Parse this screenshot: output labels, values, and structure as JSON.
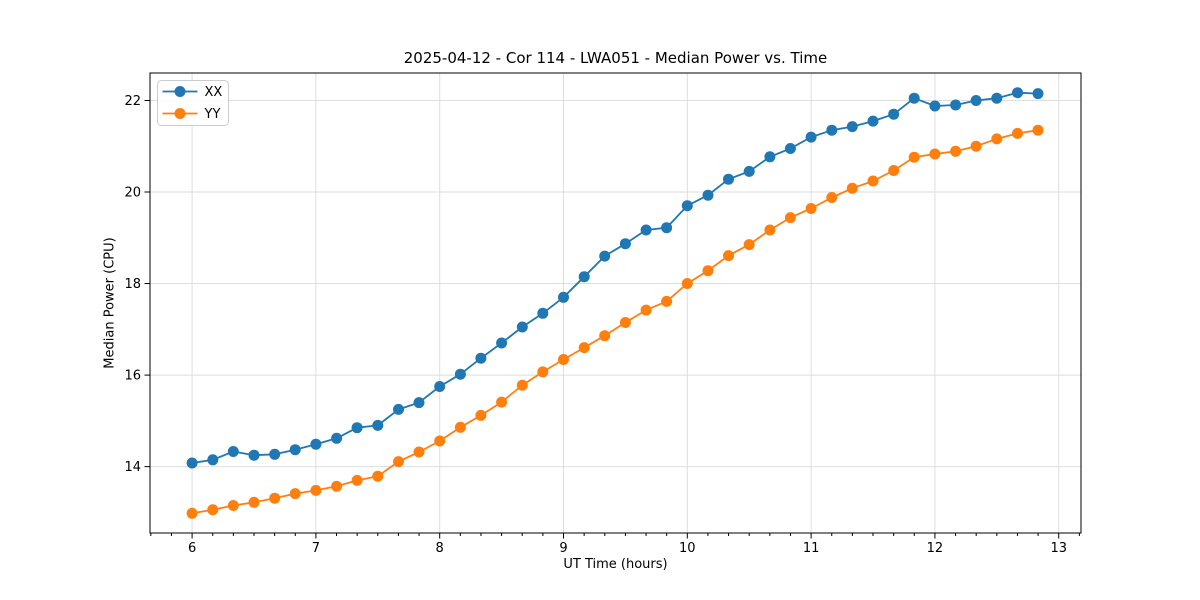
{
  "chart_data": {
    "type": "line",
    "title": "2025-04-12 - Cor 114 - LWA051 - Median Power vs. Time",
    "xlabel": "UT Time (hours)",
    "ylabel": "Median Power (CPU)",
    "xlim": [
      5.66,
      13.18
    ],
    "ylim": [
      12.55,
      22.6
    ],
    "xticks": [
      6,
      7,
      8,
      9,
      10,
      11,
      12,
      13
    ],
    "yticks": [
      14,
      16,
      18,
      20,
      22
    ],
    "minor_x_step": 0.1666667,
    "grid": true,
    "legend_position": "upper left",
    "x": [
      6,
      6.167,
      6.333,
      6.5,
      6.667,
      6.833,
      7,
      7.167,
      7.333,
      7.5,
      7.667,
      7.833,
      8,
      8.167,
      8.333,
      8.5,
      8.667,
      8.833,
      9,
      9.167,
      9.333,
      9.5,
      9.667,
      9.833,
      10,
      10.167,
      10.333,
      10.5,
      10.667,
      10.833,
      11,
      11.167,
      11.333,
      11.5,
      11.667,
      11.833,
      12,
      12.167,
      12.333,
      12.5,
      12.667,
      12.833
    ],
    "series": [
      {
        "name": "XX",
        "color": "#1f77b4",
        "values": [
          14.08,
          14.15,
          14.33,
          14.25,
          14.27,
          14.37,
          14.49,
          14.62,
          14.85,
          14.9,
          15.25,
          15.4,
          15.75,
          16.02,
          16.37,
          16.7,
          17.05,
          17.35,
          17.7,
          18.15,
          18.6,
          18.87,
          19.17,
          19.22,
          19.7,
          19.93,
          20.28,
          20.45,
          20.77,
          20.95,
          21.2,
          21.35,
          21.43,
          21.55,
          21.7,
          22.05,
          21.88,
          21.9,
          22.0,
          22.05,
          22.17,
          22.15
        ]
      },
      {
        "name": "YY",
        "color": "#ff7f0e",
        "values": [
          12.98,
          13.06,
          13.15,
          13.22,
          13.31,
          13.41,
          13.48,
          13.57,
          13.7,
          13.79,
          14.11,
          14.32,
          14.56,
          14.86,
          15.12,
          15.41,
          15.78,
          16.07,
          16.34,
          16.6,
          16.86,
          17.15,
          17.42,
          17.61,
          18.0,
          18.28,
          18.61,
          18.85,
          19.17,
          19.44,
          19.64,
          19.88,
          20.08,
          20.24,
          20.47,
          20.76,
          20.83,
          20.89,
          21.0,
          21.16,
          21.28,
          21.35
        ]
      }
    ]
  },
  "colors": {
    "background": "#ffffff",
    "grid": "#dedede",
    "spine": "#000000",
    "tick": "#000000",
    "legend_border": "#cccccc",
    "legend_bg": "#ffffff"
  }
}
